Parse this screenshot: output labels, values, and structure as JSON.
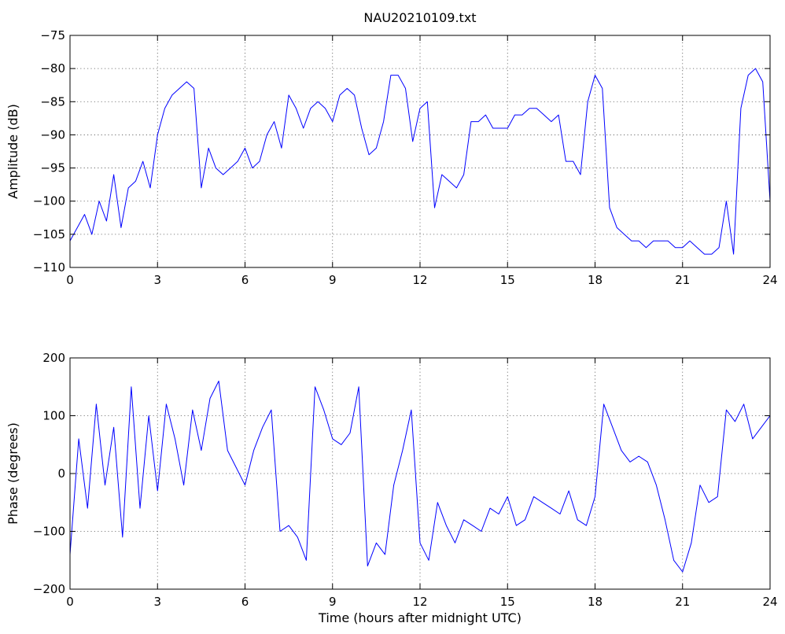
{
  "chart_data": [
    {
      "type": "line",
      "title": "NAU20210109.txt",
      "xlabel": "",
      "ylabel": "Amplitude (dB)",
      "xlim": [
        0,
        24
      ],
      "ylim": [
        -110,
        -75
      ],
      "xticks": [
        0,
        3,
        6,
        9,
        12,
        15,
        18,
        21,
        24
      ],
      "yticks": [
        -110,
        -105,
        -100,
        -95,
        -90,
        -85,
        -80,
        -75
      ],
      "grid": true,
      "color": "#0000ff",
      "series": [
        {
          "x": [
            0,
            0.25,
            0.5,
            0.75,
            1.0,
            1.25,
            1.5,
            1.75,
            2.0,
            2.25,
            2.5,
            2.75,
            3.0,
            3.25,
            3.5,
            3.75,
            4.0,
            4.25,
            4.5,
            4.75,
            5.0,
            5.25,
            5.5,
            5.75,
            6.0,
            6.25,
            6.5,
            6.75,
            7.0,
            7.25,
            7.5,
            7.75,
            8.0,
            8.25,
            8.5,
            8.75,
            9.0,
            9.25,
            9.5,
            9.75,
            10.0,
            10.25,
            10.5,
            10.75,
            11.0,
            11.25,
            11.5,
            11.75,
            12.0,
            12.25,
            12.5,
            12.75,
            13.0,
            13.25,
            13.5,
            13.75,
            14.0,
            14.25,
            14.5,
            14.75,
            15.0,
            15.25,
            15.5,
            15.75,
            16.0,
            16.25,
            16.5,
            16.75,
            17.0,
            17.25,
            17.5,
            17.75,
            18.0,
            18.25,
            18.5,
            18.75,
            19.0,
            19.25,
            19.5,
            19.75,
            20.0,
            20.25,
            20.5,
            20.75,
            21.0,
            21.25,
            21.5,
            21.75,
            22.0,
            22.25,
            22.5,
            22.75,
            23.0,
            23.25,
            23.5,
            23.75,
            24.0
          ],
          "y": [
            -106,
            -104,
            -102,
            -105,
            -100,
            -103,
            -96,
            -104,
            -98,
            -97,
            -94,
            -98,
            -90,
            -86,
            -84,
            -83,
            -82,
            -83,
            -98,
            -92,
            -95,
            -96,
            -95,
            -94,
            -92,
            -95,
            -94,
            -90,
            -88,
            -92,
            -84,
            -86,
            -89,
            -86,
            -85,
            -86,
            -88,
            -84,
            -83,
            -84,
            -89,
            -93,
            -92,
            -88,
            -81,
            -81,
            -83,
            -91,
            -86,
            -85,
            -101,
            -96,
            -97,
            -98,
            -96,
            -88,
            -88,
            -87,
            -89,
            -89,
            -89,
            -87,
            -87,
            -86,
            -86,
            -87,
            -88,
            -87,
            -94,
            -94,
            -96,
            -85,
            -81,
            -83,
            -101,
            -104,
            -105,
            -106,
            -106,
            -107,
            -106,
            -106,
            -106,
            -107,
            -107,
            -106,
            -107,
            -108,
            -108,
            -107,
            -100,
            -108,
            -86,
            -81,
            -80,
            -82,
            -100
          ]
        }
      ]
    },
    {
      "type": "line",
      "title": "",
      "xlabel": "Time (hours after midnight UTC)",
      "ylabel": "Phase (degrees)",
      "xlim": [
        0,
        24
      ],
      "ylim": [
        -200,
        200
      ],
      "xticks": [
        0,
        3,
        6,
        9,
        12,
        15,
        18,
        21,
        24
      ],
      "yticks": [
        -200,
        -100,
        0,
        100,
        200
      ],
      "grid": true,
      "color": "#0000ff",
      "series": [
        {
          "x": [
            0,
            0.3,
            0.6,
            0.9,
            1.2,
            1.5,
            1.8,
            2.1,
            2.4,
            2.7,
            3.0,
            3.3,
            3.6,
            3.9,
            4.2,
            4.5,
            4.8,
            5.1,
            5.4,
            5.7,
            6.0,
            6.3,
            6.6,
            6.9,
            7.2,
            7.5,
            7.8,
            8.1,
            8.4,
            8.7,
            9.0,
            9.3,
            9.6,
            9.9,
            10.2,
            10.5,
            10.8,
            11.1,
            11.4,
            11.7,
            12.0,
            12.3,
            12.6,
            12.9,
            13.2,
            13.5,
            13.8,
            14.1,
            14.4,
            14.7,
            15.0,
            15.3,
            15.6,
            15.9,
            16.2,
            16.5,
            16.8,
            17.1,
            17.4,
            17.7,
            18.0,
            18.3,
            18.6,
            18.9,
            19.2,
            19.5,
            19.8,
            20.1,
            20.4,
            20.7,
            21.0,
            21.3,
            21.6,
            21.9,
            22.2,
            22.5,
            22.8,
            23.1,
            23.4,
            23.7,
            24.0
          ],
          "y": [
            -140,
            60,
            -60,
            120,
            -20,
            80,
            -110,
            150,
            -60,
            100,
            -30,
            120,
            60,
            -20,
            110,
            40,
            130,
            160,
            40,
            10,
            -20,
            40,
            80,
            110,
            -100,
            -90,
            -110,
            -150,
            150,
            110,
            60,
            50,
            70,
            150,
            -160,
            -120,
            -140,
            -20,
            40,
            110,
            -120,
            -150,
            -50,
            -90,
            -120,
            -80,
            -90,
            -100,
            -60,
            -70,
            -40,
            -90,
            -80,
            -40,
            -50,
            -60,
            -70,
            -30,
            -80,
            -90,
            -40,
            120,
            80,
            40,
            20,
            30,
            20,
            -20,
            -80,
            -150,
            -170,
            -120,
            -20,
            -50,
            -40,
            110,
            90,
            120,
            60,
            80,
            100
          ]
        }
      ]
    }
  ]
}
